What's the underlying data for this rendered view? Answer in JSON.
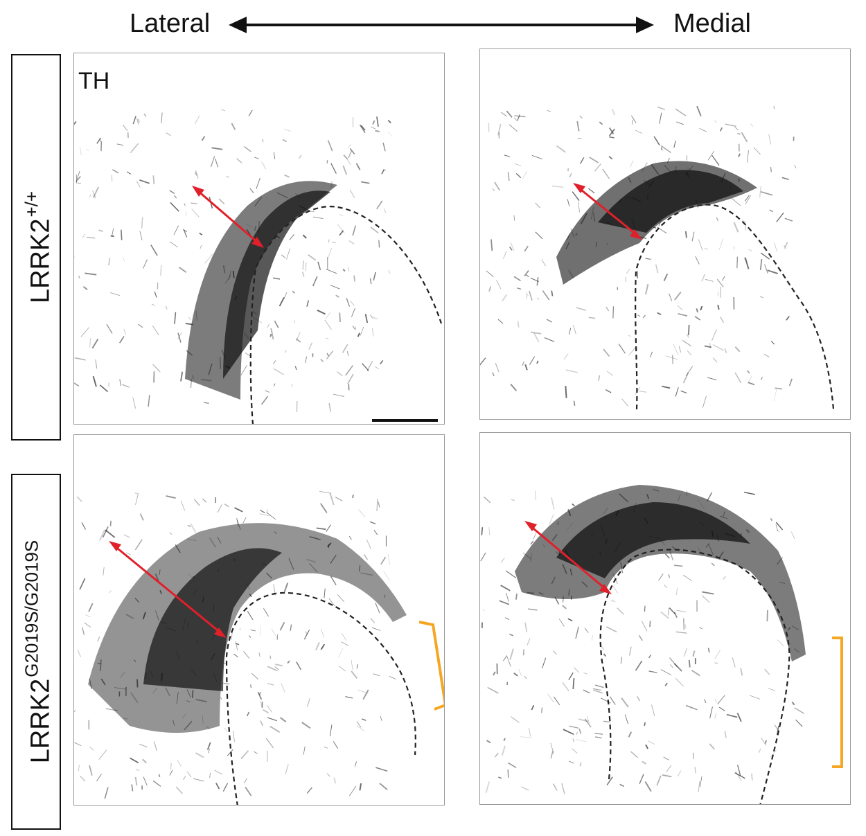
{
  "axis": {
    "left_label": "Lateral",
    "right_label": "Medial"
  },
  "rows": [
    {
      "genotype": "LRRK2",
      "superscript": "+/+"
    },
    {
      "genotype": "LRRK2",
      "superscript": "G2019S/G2019S"
    }
  ],
  "panels": {
    "stain_label": "TH"
  },
  "colors": {
    "tissue": "#111111",
    "thickness_arrow": "#e0202a",
    "bracket": "#f5a623",
    "outline": "#222222"
  }
}
